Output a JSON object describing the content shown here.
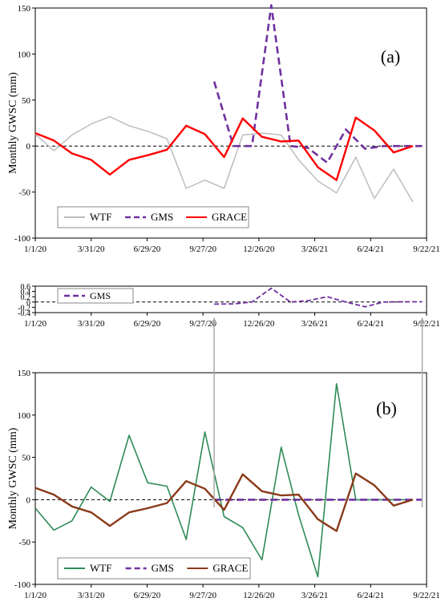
{
  "x_ticks": [
    "1/1/20",
    "3/31/20",
    "6/29/20",
    "9/27/20",
    "12/26/20",
    "3/26/21",
    "6/24/21",
    "9/22/21"
  ],
  "chart_data": [
    {
      "panel_label": "(a)",
      "type": "line",
      "ylabel": "Monthly GWSC (mm)",
      "ylim": [
        -100,
        150
      ],
      "yticks": [
        -100,
        -50,
        0,
        50,
        100,
        150
      ],
      "xlim": [
        "1/1/20",
        "9/22/21"
      ],
      "zero_line": "dashed",
      "legend_position": "bottom-left",
      "series": [
        {
          "name": "WTF",
          "color": "#bdbdbd",
          "dash": "solid",
          "x": [
            "1/1/20",
            "1/31/20",
            "2/29/20",
            "3/31/20",
            "4/30/20",
            "5/31/20",
            "6/30/20",
            "7/31/20",
            "8/31/20",
            "9/30/20",
            "10/31/20",
            "11/30/20",
            "12/31/20",
            "1/31/21",
            "2/28/21",
            "3/31/21",
            "4/30/21",
            "5/31/21",
            "6/30/21",
            "7/31/21",
            "8/31/21",
            "9/30/21"
          ],
          "values": [
            13,
            -5,
            12,
            24,
            32,
            22,
            16,
            8,
            -46,
            -37,
            -46,
            12,
            14,
            12,
            -15,
            -38,
            -51,
            -12,
            -57,
            -25,
            -61,
            null
          ]
        },
        {
          "name": "GMS",
          "color": "#7030a0",
          "dash": "dashed",
          "x": [
            "10/15/20",
            "11/15/20",
            "12/15/20",
            "1/15/21",
            "2/15/21",
            "3/15/21",
            "4/15/21",
            "5/15/21",
            "6/15/21",
            "7/15/21",
            "8/15/21",
            "9/15/21"
          ],
          "values": [
            70,
            0,
            0,
            153,
            0,
            -2,
            -18,
            18,
            -3,
            0,
            0,
            0
          ]
        },
        {
          "name": "GRACE",
          "color": "#ff0000",
          "dash": "solid",
          "x": [
            "1/1/20",
            "1/31/20",
            "2/29/20",
            "3/31/20",
            "4/30/20",
            "5/31/20",
            "6/30/20",
            "7/31/20",
            "8/31/20",
            "9/30/20",
            "10/31/20",
            "11/30/20",
            "12/31/20",
            "1/31/21",
            "2/28/21",
            "3/31/21",
            "4/30/21",
            "5/31/21",
            "6/30/21",
            "7/31/21",
            "8/31/21",
            "9/30/21"
          ],
          "values": [
            14,
            6,
            -8,
            -15,
            -31,
            -15,
            -10,
            -4,
            22,
            13,
            -12,
            30,
            10,
            5,
            6,
            -23,
            -37,
            31,
            17,
            -7,
            0,
            null
          ]
        }
      ]
    },
    {
      "panel_label": "(b)",
      "type": "line",
      "ylabel": "Monthly GWSC (mm)",
      "ylim": [
        -100,
        150
      ],
      "yticks": [
        -100,
        -50,
        0,
        50,
        100,
        150
      ],
      "xlim": [
        "1/1/20",
        "9/22/21"
      ],
      "zero_line": "dashed",
      "legend_position": "bottom-left",
      "series": [
        {
          "name": "WTF",
          "color": "#2e8b57",
          "dash": "solid",
          "x": [
            "1/1/20",
            "1/31/20",
            "2/29/20",
            "3/31/20",
            "4/30/20",
            "5/31/20",
            "6/30/20",
            "7/31/20",
            "8/31/20",
            "9/30/20",
            "10/31/20",
            "11/30/20",
            "12/31/20",
            "1/31/21",
            "2/28/21",
            "3/31/21",
            "4/30/21",
            "5/31/21",
            "6/30/21",
            "7/31/21",
            "8/31/21",
            "9/30/21"
          ],
          "values": [
            -10,
            -36,
            -25,
            15,
            -2,
            76,
            20,
            16,
            -47,
            80,
            -20,
            -33,
            -71,
            62,
            -18,
            -91,
            137,
            0,
            0,
            0,
            0,
            null
          ]
        },
        {
          "name": "GMS",
          "color": "#7030a0",
          "dash": "dashed",
          "x": [
            "10/15/20",
            "11/15/20",
            "12/15/20",
            "1/15/21",
            "2/15/21",
            "3/15/21",
            "4/15/21",
            "5/15/21",
            "6/15/21",
            "7/15/21",
            "8/15/21",
            "9/15/21"
          ],
          "values": [
            0,
            0,
            0,
            0,
            0,
            0,
            0,
            0,
            0,
            0,
            0,
            0
          ]
        },
        {
          "name": "GRACE",
          "color": "#8b3a1a",
          "dash": "solid",
          "x": [
            "1/1/20",
            "1/31/20",
            "2/29/20",
            "3/31/20",
            "4/30/20",
            "5/31/20",
            "6/30/20",
            "7/31/20",
            "8/31/20",
            "9/30/20",
            "10/31/20",
            "11/30/20",
            "12/31/20",
            "1/31/21",
            "2/28/21",
            "3/31/21",
            "4/30/21",
            "5/31/21",
            "6/30/21",
            "7/31/21",
            "8/31/21",
            "9/30/21"
          ],
          "values": [
            14,
            6,
            -8,
            -15,
            -31,
            -15,
            -10,
            -4,
            22,
            13,
            -12,
            30,
            10,
            5,
            6,
            -23,
            -37,
            31,
            17,
            -7,
            0,
            null
          ]
        }
      ]
    },
    {
      "panel_label": "",
      "type": "line",
      "ylabel": "",
      "ylim": [
        -0.4,
        0.6
      ],
      "yticks": [
        -0.4,
        -0.2,
        0,
        0.2,
        0.4,
        0.6
      ],
      "xlim": [
        "1/1/20",
        "9/22/21"
      ],
      "zero_line": "dashed",
      "legend_position": "top-left",
      "series": [
        {
          "name": "GMS",
          "color": "#7030a0",
          "dash": "dashed",
          "x": [
            "10/15/20",
            "11/15/20",
            "12/15/20",
            "1/15/21",
            "2/15/21",
            "3/15/21",
            "4/15/21",
            "5/15/21",
            "6/15/21",
            "7/15/21",
            "8/15/21",
            "9/15/21"
          ],
          "values": [
            -0.08,
            -0.07,
            0.0,
            0.52,
            0.0,
            0.05,
            0.2,
            0.0,
            -0.18,
            0.0,
            0.01,
            0.01
          ]
        }
      ]
    }
  ]
}
